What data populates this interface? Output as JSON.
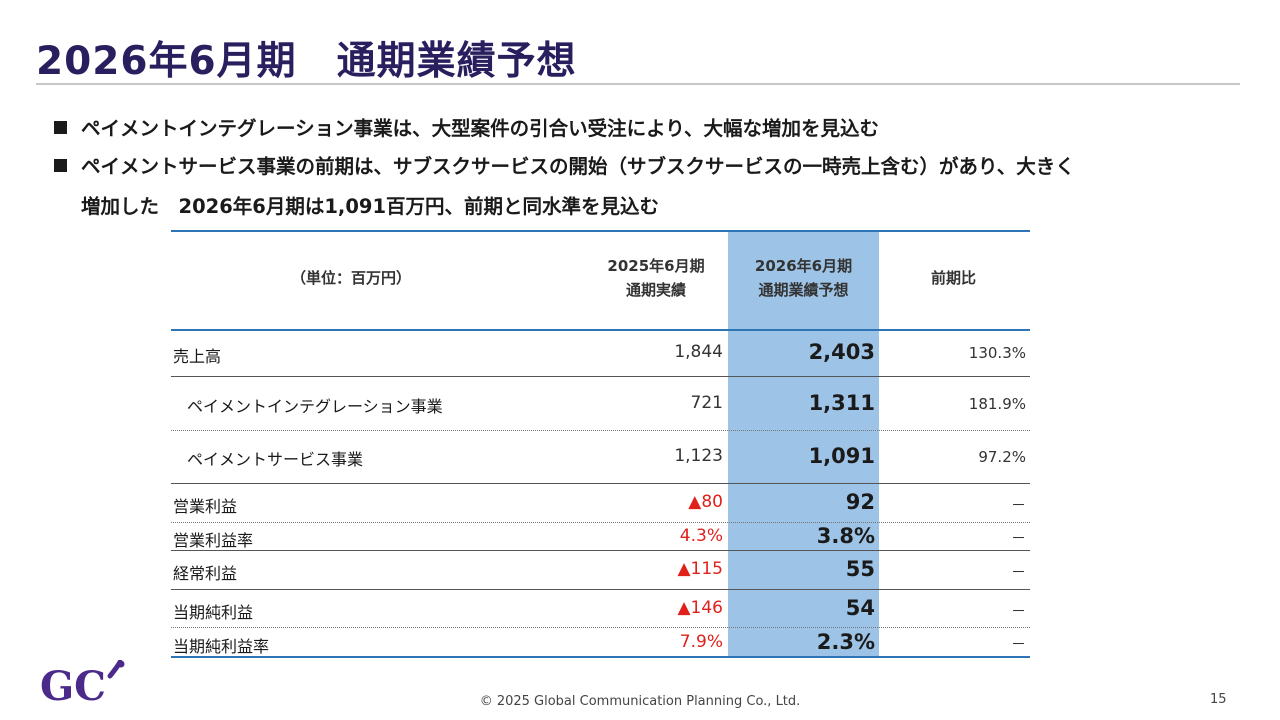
{
  "title": "2026年6月期　通期業績予想",
  "bullets": {
    "b1": "ペイメントインテグレーション事業は、大型案件の引合い受注により、大幅な増加を見込む",
    "b2_line1": "ペイメントサービス事業の前期は、サブスクサービスの開始（サブスクサービスの一時売上含む）があり、大きく",
    "b2_line2": "増加した　2026年6月期は1,091百万円、前期と同水準を見込む"
  },
  "table": {
    "unit": "（単位：百万円）",
    "col1": [
      "2025年6月期",
      "通期実績"
    ],
    "col2": [
      "2026年6月期",
      "通期業績予想"
    ],
    "col3": "前期比",
    "rows": [
      {
        "label": "売上高",
        "v1": "1,844",
        "v2": "2,403",
        "v3": "130.3%"
      },
      {
        "label": "ペイメントインテグレーション事業",
        "v1": "721",
        "v2": "1,311",
        "v3": "181.9%"
      },
      {
        "label": "ペイメントサービス事業",
        "v1": "1,123",
        "v2": "1,091",
        "v3": "97.2%"
      },
      {
        "label": "営業利益",
        "v1": "▲80",
        "v2": "92",
        "v3": "－"
      },
      {
        "label": "営業利益率",
        "v1": "4.3%",
        "v2": "3.8%",
        "v3": "－"
      },
      {
        "label": "経常利益",
        "v1": "▲115",
        "v2": "55",
        "v3": "－"
      },
      {
        "label": "当期純利益",
        "v1": "▲146",
        "v2": "54",
        "v3": "－"
      },
      {
        "label": "当期純利益率",
        "v1": "7.9%",
        "v2": "2.3%",
        "v3": "－"
      }
    ]
  },
  "logo_text": "GC",
  "colors": {
    "title": "#2a1f5e",
    "highlight": "#9dc3e6",
    "negative": "#e0201b",
    "rule": "#2e75b6",
    "logo": "#4b2a8c"
  },
  "footer": "© 2025 Global Communication Planning Co., Ltd.",
  "page_number": "15"
}
